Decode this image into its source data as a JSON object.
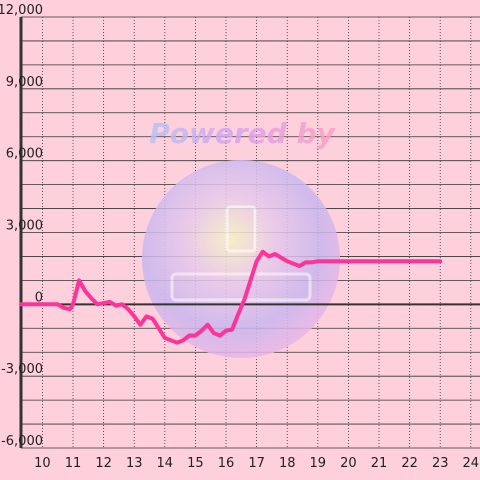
{
  "chart_data": {
    "type": "line",
    "title": "",
    "xlabel": "",
    "ylabel": "",
    "xlim": [
      9.3,
      24.3
    ],
    "ylim": [
      -6000,
      12000
    ],
    "x_ticks": [
      10,
      11,
      12,
      13,
      14,
      15,
      16,
      17,
      18,
      19,
      20,
      21,
      22,
      23,
      24
    ],
    "y_ticks": [
      -6000,
      -3000,
      0,
      3000,
      6000,
      9000,
      12000
    ],
    "x_tick_labels": [
      "10",
      "11",
      "12",
      "13",
      "14",
      "15",
      "16",
      "17",
      "18",
      "19",
      "20",
      "21",
      "22",
      "23",
      "24"
    ],
    "y_tick_labels": [
      "-6,000",
      "-3,000",
      "0",
      "3,000",
      "6,000",
      "9,000",
      "12,000"
    ],
    "grid": true,
    "series": [
      {
        "color": "#ff3399",
        "x": [
          9.3,
          9.9,
          10.5,
          10.7,
          10.9,
          11.0,
          11.2,
          11.4,
          11.6,
          11.8,
          12.0,
          12.2,
          12.4,
          12.6,
          12.8,
          13.0,
          13.2,
          13.4,
          13.6,
          13.8,
          14.0,
          14.2,
          14.4,
          14.6,
          14.8,
          15.0,
          15.2,
          15.4,
          15.6,
          15.8,
          16.0,
          16.2,
          16.4,
          16.6,
          16.8,
          17.0,
          17.2,
          17.4,
          17.6,
          17.8,
          18.0,
          18.2,
          18.4,
          18.6,
          18.8,
          19.0,
          19.2,
          19.4,
          19.6,
          19.8,
          20.0,
          21.0,
          22.0,
          23.0
        ],
        "y": [
          0,
          0,
          0,
          -150,
          -200,
          0,
          1000,
          550,
          250,
          0,
          50,
          100,
          -50,
          0,
          -200,
          -500,
          -850,
          -500,
          -600,
          -1000,
          -1400,
          -1500,
          -1600,
          -1500,
          -1300,
          -1300,
          -1100,
          -850,
          -1200,
          -1300,
          -1100,
          -1050,
          -400,
          200,
          1000,
          1800,
          2200,
          2000,
          2100,
          1950,
          1800,
          1700,
          1600,
          1750,
          1750,
          1800,
          1800,
          1800,
          1800,
          1800,
          1800,
          1800,
          1800,
          1800
        ]
      }
    ]
  },
  "watermark": {
    "powered_text": "Powered by"
  },
  "colors": {
    "background": "#fdd0dc",
    "line": "#ff3399",
    "axis": "#333333",
    "grid": "#333333"
  }
}
